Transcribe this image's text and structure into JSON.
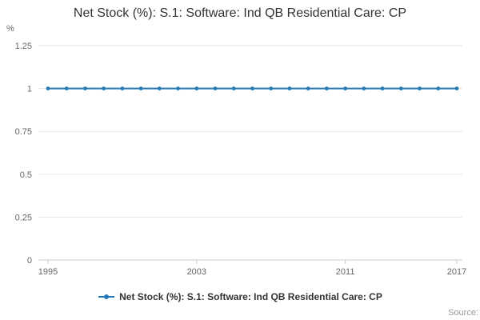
{
  "chart_data": {
    "type": "line",
    "title": "Net Stock (%): S.1: Software: Ind QB Residential Care: CP",
    "xlabel": "",
    "ylabel": "%",
    "x": [
      1995,
      1996,
      1997,
      1998,
      1999,
      2000,
      2001,
      2002,
      2003,
      2004,
      2005,
      2006,
      2007,
      2008,
      2009,
      2010,
      2011,
      2012,
      2013,
      2014,
      2015,
      2016,
      2017
    ],
    "series": [
      {
        "name": "Net Stock (%): S.1: Software: Ind QB Residential Care: CP",
        "values": [
          1,
          1,
          1,
          1,
          1,
          1,
          1,
          1,
          1,
          1,
          1,
          1,
          1,
          1,
          1,
          1,
          1,
          1,
          1,
          1,
          1,
          1,
          1
        ],
        "color": "#2379b6"
      }
    ],
    "ylim": [
      0,
      1.25
    ],
    "yticks": [
      0,
      0.25,
      0.5,
      0.75,
      1,
      1.25
    ],
    "xticks": [
      1995,
      2003,
      2011,
      2017
    ],
    "grid": true,
    "legend_position": "bottom",
    "colors": {
      "gridline": "#e6e6e6",
      "axis_line": "#cccccc",
      "tick_label": "#666666",
      "title": "#333333"
    }
  },
  "footer": {
    "source": "Source:"
  }
}
